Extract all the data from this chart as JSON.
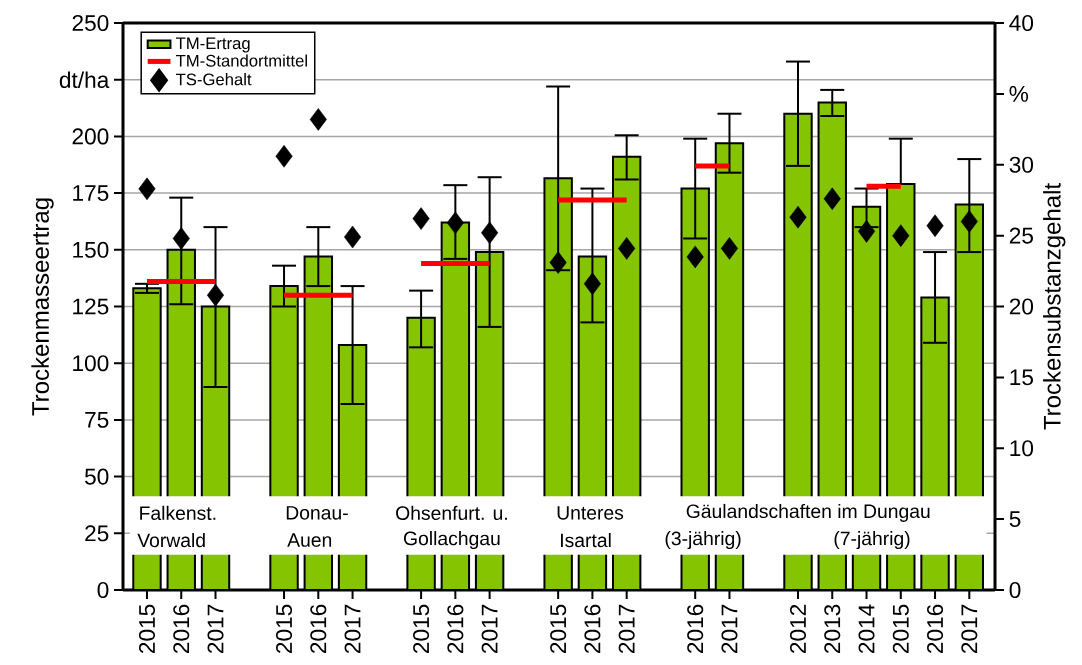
{
  "chart_data": {
    "type": "bar",
    "ylabel": "Trockenmasseertrag",
    "y2label": "Trockensubstanzgehalt",
    "categories": [
      "2015",
      "2016",
      "2017",
      null,
      "2015",
      "2016",
      "2017",
      null,
      "2015",
      "2016",
      "2017",
      null,
      "2015",
      "2016",
      "2017",
      null,
      "2016",
      "2017",
      null,
      "2012",
      "2013",
      "2014",
      "2015",
      "2016",
      "2017"
    ],
    "series": [
      {
        "name": "TM-Ertrag",
        "color": "#84c400",
        "values": [
          133,
          150,
          125,
          null,
          134,
          147,
          108,
          null,
          120,
          162,
          149,
          null,
          181.5,
          147,
          191,
          null,
          177,
          197,
          null,
          210,
          215,
          169,
          179,
          129,
          170
        ],
        "errors": [
          [
            131,
            135
          ],
          [
            126,
            173
          ],
          [
            89.5,
            160
          ],
          null,
          [
            125,
            143
          ],
          [
            134,
            160
          ],
          [
            82,
            134
          ],
          null,
          [
            107,
            132
          ],
          [
            146,
            178.5
          ],
          [
            116,
            182
          ],
          null,
          [
            141,
            222
          ],
          [
            118,
            177
          ],
          [
            181,
            200.5
          ],
          null,
          [
            155,
            199
          ],
          [
            184,
            210
          ],
          null,
          [
            187,
            233
          ],
          [
            209,
            220.5
          ],
          [
            160,
            177
          ],
          [
            179,
            199
          ],
          [
            109,
            149
          ],
          [
            149,
            190
          ]
        ]
      },
      {
        "name": "TM-Standortmittel",
        "type": "line",
        "color": "#ff0000",
        "values": [
          136,
          136,
          136,
          null,
          130,
          130,
          130,
          null,
          144,
          144,
          144,
          null,
          172,
          172,
          172,
          null,
          187,
          187,
          null,
          null,
          null,
          178,
          178,
          null,
          null
        ]
      },
      {
        "name": "TS-Gehalt",
        "type": "scatter",
        "color": "#000000",
        "axis": "y2",
        "marker": "diamond",
        "values": [
          28.3,
          24.8,
          20.8,
          null,
          30.6,
          33.2,
          24.9,
          null,
          26.2,
          25.9,
          25.2,
          null,
          23.1,
          21.6,
          24.1,
          null,
          23.5,
          24.1,
          null,
          26.3,
          27.6,
          25.3,
          25.0,
          25.7,
          26.0
        ]
      }
    ],
    "ylim": [
      0,
      250
    ],
    "yticks": [
      0,
      25,
      50,
      75,
      100,
      125,
      150,
      175,
      200,
      {
        "value": 225,
        "label": "dt/ha"
      },
      250
    ],
    "y2lim": [
      0,
      40
    ],
    "y2ticks": [
      0,
      5,
      10,
      15,
      20,
      25,
      30,
      {
        "value": 35,
        "label": "%"
      },
      40
    ],
    "grid": "y",
    "bands": [
      {
        "axis": "y",
        "from": 15.5,
        "to": 41.3,
        "color": "#ffffff"
      }
    ],
    "legend": "top left",
    "annotations": [
      "Falkenst.",
      "Vorwald",
      "Donau-",
      "Auen",
      "Ohsenfurt. u.",
      "Gollachgau",
      "Unteres",
      "Isartal",
      "Gäulandschaften im Dungau",
      "(3-jährig)",
      "(7-jährig)"
    ]
  }
}
